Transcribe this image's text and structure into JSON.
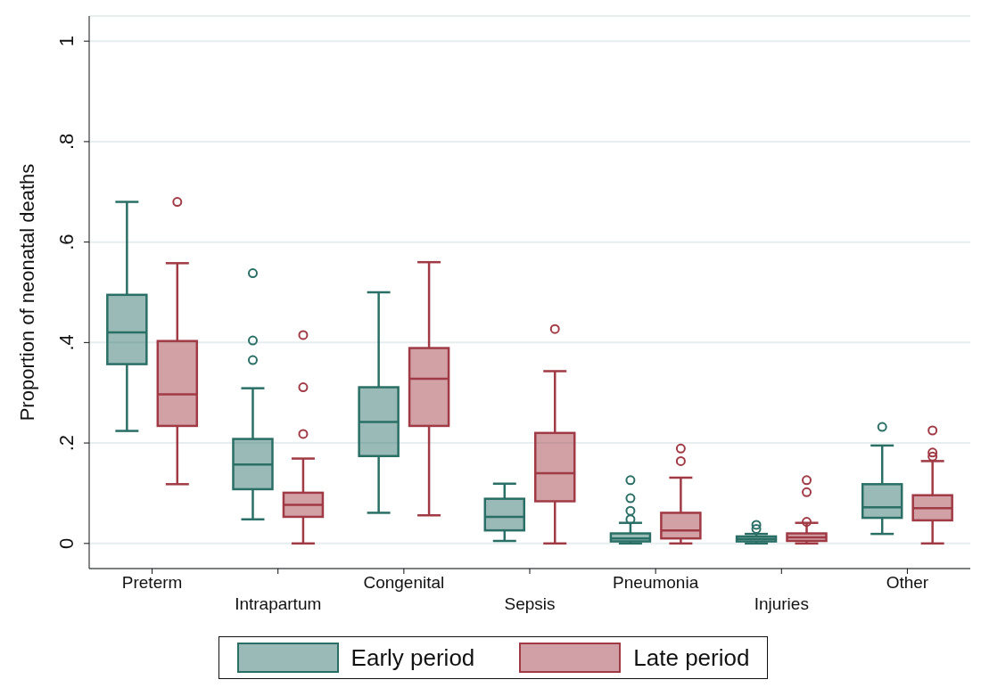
{
  "chart_data": {
    "type": "box",
    "ylabel": "Proportion of neonatal deaths",
    "categories": [
      "Preterm",
      "Intrapartum",
      "Congenital",
      "Sepsis",
      "Pneumonia",
      "Injuries",
      "Other"
    ],
    "ylim": [
      -0.05,
      1.05
    ],
    "yticks": [
      0,
      {
        "value": 0.2,
        "label": ".2"
      },
      {
        "value": 0.4,
        "label": ".4"
      },
      {
        "value": 0.6,
        "label": ".6"
      },
      {
        "value": 0.8,
        "label": ".8"
      },
      1
    ],
    "grid": "y",
    "legend": "bottom",
    "series": [
      {
        "name": "Early period",
        "color": "#2a6f66",
        "boxes": [
          {
            "low": 0.224,
            "q1": 0.357,
            "median": 0.42,
            "q3": 0.495,
            "high": 0.68
          },
          {
            "low": 0.048,
            "q1": 0.108,
            "median": 0.157,
            "q3": 0.208,
            "high": 0.309,
            "outliers": [
              0.538,
              0.404,
              0.365
            ]
          },
          {
            "low": 0.061,
            "q1": 0.174,
            "median": 0.242,
            "q3": 0.311,
            "high": 0.5
          },
          {
            "low": 0.005,
            "q1": 0.026,
            "median": 0.053,
            "q3": 0.089,
            "high": 0.119
          },
          {
            "low": 0,
            "q1": 0.004,
            "median": 0.01,
            "q3": 0.02,
            "high": 0.041,
            "outliers": [
              0.126,
              0.09,
              0.065,
              0.048
            ]
          },
          {
            "low": 0,
            "q1": 0.004,
            "median": 0.009,
            "q3": 0.014,
            "high": 0.019,
            "outliers": [
              0.037,
              0.029
            ]
          },
          {
            "low": 0.019,
            "q1": 0.051,
            "median": 0.072,
            "q3": 0.118,
            "high": 0.195,
            "outliers": [
              0.232
            ]
          }
        ]
      },
      {
        "name": "Late period",
        "color": "#a03a45",
        "boxes": [
          {
            "low": 0.118,
            "q1": 0.234,
            "median": 0.297,
            "q3": 0.403,
            "high": 0.558,
            "outliers": [
              0.68
            ]
          },
          {
            "low": 0,
            "q1": 0.053,
            "median": 0.077,
            "q3": 0.101,
            "high": 0.169,
            "outliers": [
              0.415,
              0.311,
              0.218
            ]
          },
          {
            "low": 0.056,
            "q1": 0.234,
            "median": 0.328,
            "q3": 0.389,
            "high": 0.56
          },
          {
            "low": 0,
            "q1": 0.084,
            "median": 0.14,
            "q3": 0.22,
            "high": 0.343,
            "outliers": [
              0.427
            ]
          },
          {
            "low": 0,
            "q1": 0.01,
            "median": 0.026,
            "q3": 0.061,
            "high": 0.131,
            "outliers": [
              0.189,
              0.164
            ]
          },
          {
            "low": 0,
            "q1": 0.005,
            "median": 0.012,
            "q3": 0.02,
            "high": 0.041,
            "outliers": [
              0.126,
              0.102,
              0.043
            ]
          },
          {
            "low": 0,
            "q1": 0.046,
            "median": 0.07,
            "q3": 0.096,
            "high": 0.164,
            "outliers": [
              0.225,
              0.181,
              0.173
            ]
          }
        ]
      }
    ]
  }
}
